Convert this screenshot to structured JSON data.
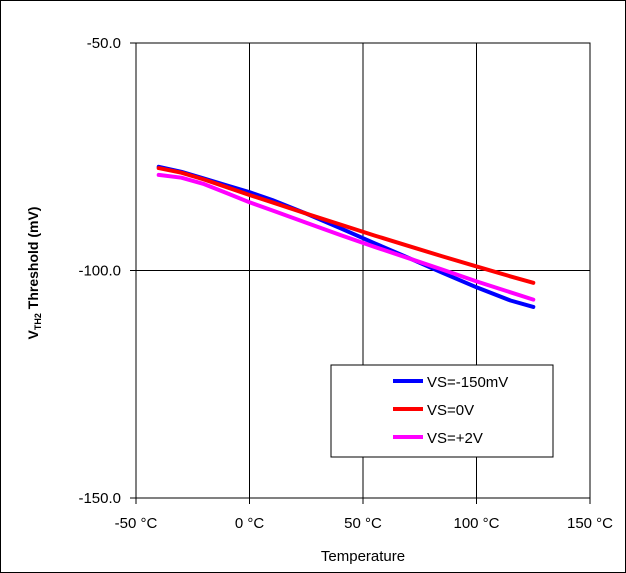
{
  "chart_data": {
    "type": "line",
    "xlabel": "Temperature",
    "ylabel": {
      "prefix": "V",
      "subscript": "TH2",
      "suffix": " Threshold (mV)"
    },
    "xlim": [
      -50,
      150
    ],
    "ylim": [
      -150,
      -50
    ],
    "x_ticks": [
      -50,
      0,
      50,
      100,
      150
    ],
    "x_tick_labels": [
      "-50 °C",
      "0 °C",
      "50 °C",
      "100 °C",
      "150 °C"
    ],
    "y_ticks": [
      -150,
      -100,
      -50
    ],
    "y_tick_labels": [
      "-150.0",
      "-100.0",
      "-50.0"
    ],
    "grid": true,
    "legend_position": "bottom-right",
    "series": [
      {
        "name": "VS=-150mV",
        "color": "#0000ff",
        "x": [
          -40,
          -30,
          -20,
          -10,
          0,
          10,
          25,
          40,
          55,
          70,
          85,
          100,
          115,
          125
        ],
        "y": [
          -77.2,
          -78.3,
          -79.8,
          -81.3,
          -82.8,
          -84.5,
          -87.5,
          -90.7,
          -94.0,
          -97.2,
          -100.5,
          -103.7,
          -106.6,
          -108.0
        ]
      },
      {
        "name": "VS=0V",
        "color": "#ff0000",
        "x": [
          -40,
          -30,
          -20,
          -10,
          0,
          10,
          25,
          40,
          55,
          70,
          85,
          100,
          115,
          125
        ],
        "y": [
          -77.5,
          -78.5,
          -80.0,
          -81.7,
          -83.4,
          -85.0,
          -87.5,
          -89.9,
          -92.3,
          -94.6,
          -96.9,
          -99.1,
          -101.3,
          -102.7
        ]
      },
      {
        "name": "VS=+2V",
        "color": "#ff00ff",
        "x": [
          -40,
          -30,
          -20,
          -10,
          0,
          10,
          25,
          40,
          55,
          70,
          85,
          100,
          115,
          125
        ],
        "y": [
          -79.0,
          -79.6,
          -81.0,
          -83.0,
          -85.0,
          -86.8,
          -89.5,
          -92.2,
          -94.8,
          -97.3,
          -99.8,
          -102.4,
          -104.8,
          -106.4
        ]
      }
    ]
  }
}
